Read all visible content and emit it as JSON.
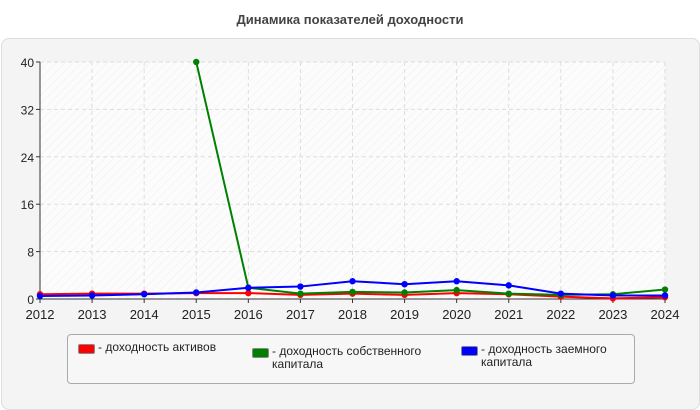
{
  "chart_data": {
    "type": "line",
    "title": "Динамика показателей доходности",
    "xlabel": "",
    "ylabel": "",
    "x": [
      "2012",
      "2013",
      "2014",
      "2015",
      "2016",
      "2017",
      "2018",
      "2019",
      "2020",
      "2021",
      "2022",
      "2023",
      "2024"
    ],
    "ylim": [
      0,
      40
    ],
    "yticks": [
      "0",
      "8",
      "16",
      "24",
      "32",
      "40"
    ],
    "grid": true,
    "legend_position": "bottom",
    "series": [
      {
        "name": "- доходность активов",
        "color": "#ff0000",
        "values": [
          0.8,
          0.9,
          0.9,
          1.0,
          1.0,
          0.7,
          0.9,
          0.7,
          1.0,
          0.8,
          0.4,
          0.1,
          0.3
        ]
      },
      {
        "name": "- доходность собственного капитала",
        "color": "#008000",
        "values": [
          null,
          null,
          null,
          40,
          1.9,
          0.9,
          1.2,
          1.1,
          1.5,
          0.9,
          0.7,
          0.8,
          1.6
        ]
      },
      {
        "name": "- доходность заемного капитала",
        "color": "#0000ff",
        "values": [
          0.5,
          0.6,
          0.8,
          1.1,
          1.9,
          2.1,
          3.0,
          2.5,
          3.0,
          2.3,
          0.9,
          0.6,
          0.6
        ]
      }
    ]
  }
}
